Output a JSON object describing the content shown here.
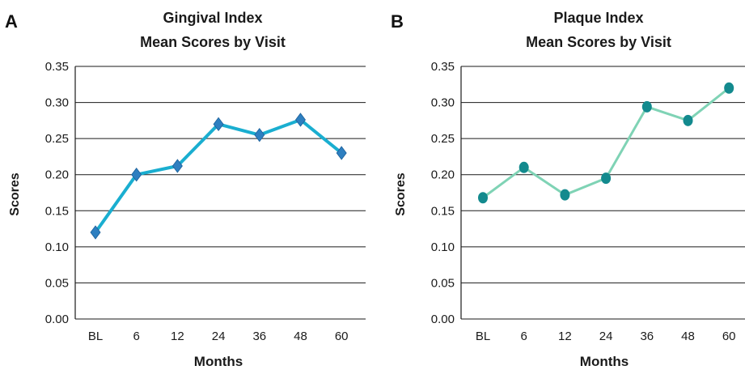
{
  "chart_data": [
    {
      "panel": "A",
      "type": "line",
      "title": "Gingival Index",
      "subtitle": "Mean Scores by Visit",
      "xlabel": "Months",
      "ylabel": "Scores",
      "categories": [
        "BL",
        "6",
        "12",
        "24",
        "36",
        "48",
        "60"
      ],
      "y_ticks": [
        "0.00",
        "0.05",
        "0.10",
        "0.15",
        "0.20",
        "0.25",
        "0.30",
        "0.35"
      ],
      "ylim": [
        0,
        0.35
      ],
      "grid": true,
      "marker": "diamond",
      "line_color": "#1aaed0",
      "marker_color": "#2e7fc0",
      "series": [
        {
          "values": [
            0.12,
            0.2,
            0.212,
            0.27,
            0.255,
            0.276,
            0.23
          ]
        }
      ]
    },
    {
      "panel": "B",
      "type": "line",
      "title": "Plaque Index",
      "subtitle": "Mean Scores by Visit",
      "xlabel": "Months",
      "ylabel": "Scores",
      "categories": [
        "BL",
        "6",
        "12",
        "24",
        "36",
        "48",
        "60"
      ],
      "y_ticks": [
        "0.00",
        "0.05",
        "0.10",
        "0.15",
        "0.20",
        "0.25",
        "0.30",
        "0.35"
      ],
      "ylim": [
        0,
        0.35
      ],
      "grid": true,
      "marker": "circle",
      "line_color": "#7fd3b5",
      "marker_color": "#138a8e",
      "series": [
        {
          "values": [
            0.168,
            0.21,
            0.172,
            0.195,
            0.294,
            0.275,
            0.32
          ]
        }
      ]
    }
  ]
}
